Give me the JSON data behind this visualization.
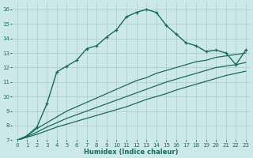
{
  "xlabel": "Humidex (Indice chaleur)",
  "background_color": "#cce8e8",
  "grid_color": "#aacccc",
  "line_color": "#1a6b5a",
  "xlim": [
    -0.5,
    23.5
  ],
  "ylim": [
    7,
    16.5
  ],
  "xticks": [
    0,
    1,
    2,
    3,
    4,
    5,
    6,
    7,
    8,
    9,
    10,
    11,
    12,
    13,
    14,
    15,
    16,
    17,
    18,
    19,
    20,
    21,
    22,
    23
  ],
  "yticks": [
    7,
    8,
    9,
    10,
    11,
    12,
    13,
    14,
    15,
    16
  ],
  "line1_x": [
    0,
    1,
    2,
    3,
    4,
    5,
    6,
    7,
    8,
    9,
    10,
    11,
    12,
    13,
    14,
    15,
    16,
    17,
    18,
    19,
    20,
    21,
    22,
    23
  ],
  "line1_y": [
    6.9,
    7.3,
    7.9,
    9.5,
    11.7,
    12.1,
    12.5,
    13.3,
    13.5,
    14.1,
    14.6,
    15.5,
    15.8,
    16.0,
    15.8,
    14.9,
    14.3,
    13.7,
    13.5,
    13.1,
    13.2,
    13.0,
    12.2,
    13.2
  ],
  "line2_x": [
    0,
    1,
    2,
    3,
    4,
    5,
    6,
    7,
    8,
    9,
    10,
    11,
    12,
    13,
    14,
    15,
    16,
    17,
    18,
    19,
    20,
    21,
    22,
    23
  ],
  "line2_y": [
    7.0,
    7.3,
    7.8,
    8.2,
    8.6,
    9.0,
    9.3,
    9.6,
    9.9,
    10.2,
    10.5,
    10.8,
    11.1,
    11.3,
    11.6,
    11.8,
    12.0,
    12.2,
    12.4,
    12.5,
    12.7,
    12.8,
    12.9,
    13.0
  ],
  "line3_x": [
    0,
    1,
    2,
    3,
    4,
    5,
    6,
    7,
    8,
    9,
    10,
    11,
    12,
    13,
    14,
    15,
    16,
    17,
    18,
    19,
    20,
    21,
    22,
    23
  ],
  "line3_y": [
    7.0,
    7.25,
    7.55,
    7.9,
    8.2,
    8.5,
    8.75,
    9.0,
    9.25,
    9.5,
    9.75,
    10.0,
    10.25,
    10.5,
    10.75,
    11.0,
    11.2,
    11.4,
    11.6,
    11.8,
    12.0,
    12.1,
    12.2,
    12.35
  ],
  "line4_x": [
    0,
    1,
    2,
    3,
    4,
    5,
    6,
    7,
    8,
    9,
    10,
    11,
    12,
    13,
    14,
    15,
    16,
    17,
    18,
    19,
    20,
    21,
    22,
    23
  ],
  "line4_y": [
    7.0,
    7.2,
    7.4,
    7.65,
    7.9,
    8.1,
    8.3,
    8.5,
    8.7,
    8.9,
    9.1,
    9.3,
    9.55,
    9.8,
    10.0,
    10.2,
    10.45,
    10.65,
    10.85,
    11.05,
    11.25,
    11.45,
    11.6,
    11.75
  ]
}
